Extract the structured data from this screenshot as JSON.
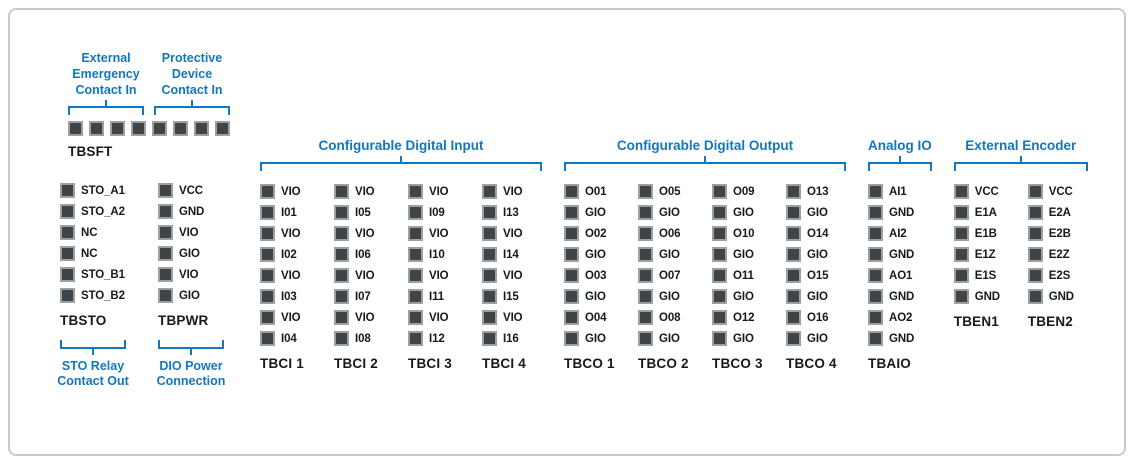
{
  "diagram": {
    "colors": {
      "accent_blue": "#1377bd",
      "pin_fill": "#404447",
      "pin_border": "#9aa0a3",
      "text_black": "#17191b",
      "frame_border": "#c7cbce"
    },
    "tbsft": {
      "name": "TBSFT",
      "pin_count": 8,
      "top_groups": [
        {
          "label_lines": [
            "External",
            "Emergency",
            "Contact In"
          ],
          "span_pins": 4
        },
        {
          "label_lines": [
            "Protective",
            "Device",
            "Contact In"
          ],
          "span_pins": 4
        }
      ]
    },
    "left_blocks": [
      {
        "name": "TBSTO",
        "pins": [
          "STO_A1",
          "STO_A2",
          "NC",
          "NC",
          "STO_B1",
          "STO_B2"
        ],
        "footer_lines": [
          "STO Relay",
          "Contact Out"
        ]
      },
      {
        "name": "TBPWR",
        "pins": [
          "VCC",
          "GND",
          "VIO",
          "GIO",
          "VIO",
          "GIO"
        ],
        "footer_lines": [
          "DIO Power",
          "Connection"
        ]
      }
    ],
    "sections": [
      {
        "title": "Configurable Digital Input",
        "blocks": [
          {
            "name": "TBCI 1",
            "pins": [
              "VIO",
              "I01",
              "VIO",
              "I02",
              "VIO",
              "I03",
              "VIO",
              "I04"
            ]
          },
          {
            "name": "TBCI 2",
            "pins": [
              "VIO",
              "I05",
              "VIO",
              "I06",
              "VIO",
              "I07",
              "VIO",
              "I08"
            ]
          },
          {
            "name": "TBCI 3",
            "pins": [
              "VIO",
              "I09",
              "VIO",
              "I10",
              "VIO",
              "I11",
              "VIO",
              "I12"
            ]
          },
          {
            "name": "TBCI 4",
            "pins": [
              "VIO",
              "I13",
              "VIO",
              "I14",
              "VIO",
              "I15",
              "VIO",
              "I16"
            ]
          }
        ]
      },
      {
        "title": "Configurable Digital Output",
        "blocks": [
          {
            "name": "TBCO 1",
            "pins": [
              "O01",
              "GIO",
              "O02",
              "GIO",
              "O03",
              "GIO",
              "O04",
              "GIO"
            ]
          },
          {
            "name": "TBCO 2",
            "pins": [
              "O05",
              "GIO",
              "O06",
              "GIO",
              "O07",
              "GIO",
              "O08",
              "GIO"
            ]
          },
          {
            "name": "TBCO 3",
            "pins": [
              "O09",
              "GIO",
              "O10",
              "GIO",
              "O11",
              "GIO",
              "O12",
              "GIO"
            ]
          },
          {
            "name": "TBCO 4",
            "pins": [
              "O13",
              "GIO",
              "O14",
              "GIO",
              "O15",
              "GIO",
              "O16",
              "GIO"
            ]
          }
        ]
      },
      {
        "title": "Analog IO",
        "blocks": [
          {
            "name": "TBAIO",
            "pins": [
              "AI1",
              "GND",
              "AI2",
              "GND",
              "AO1",
              "GND",
              "AO2",
              "GND"
            ]
          }
        ]
      },
      {
        "title": "External Encoder",
        "blocks": [
          {
            "name": "TBEN1",
            "pins": [
              "VCC",
              "E1A",
              "E1B",
              "E1Z",
              "E1S",
              "GND"
            ]
          },
          {
            "name": "TBEN2",
            "pins": [
              "VCC",
              "E2A",
              "E2B",
              "E2Z",
              "E2S",
              "GND"
            ]
          }
        ]
      }
    ]
  }
}
